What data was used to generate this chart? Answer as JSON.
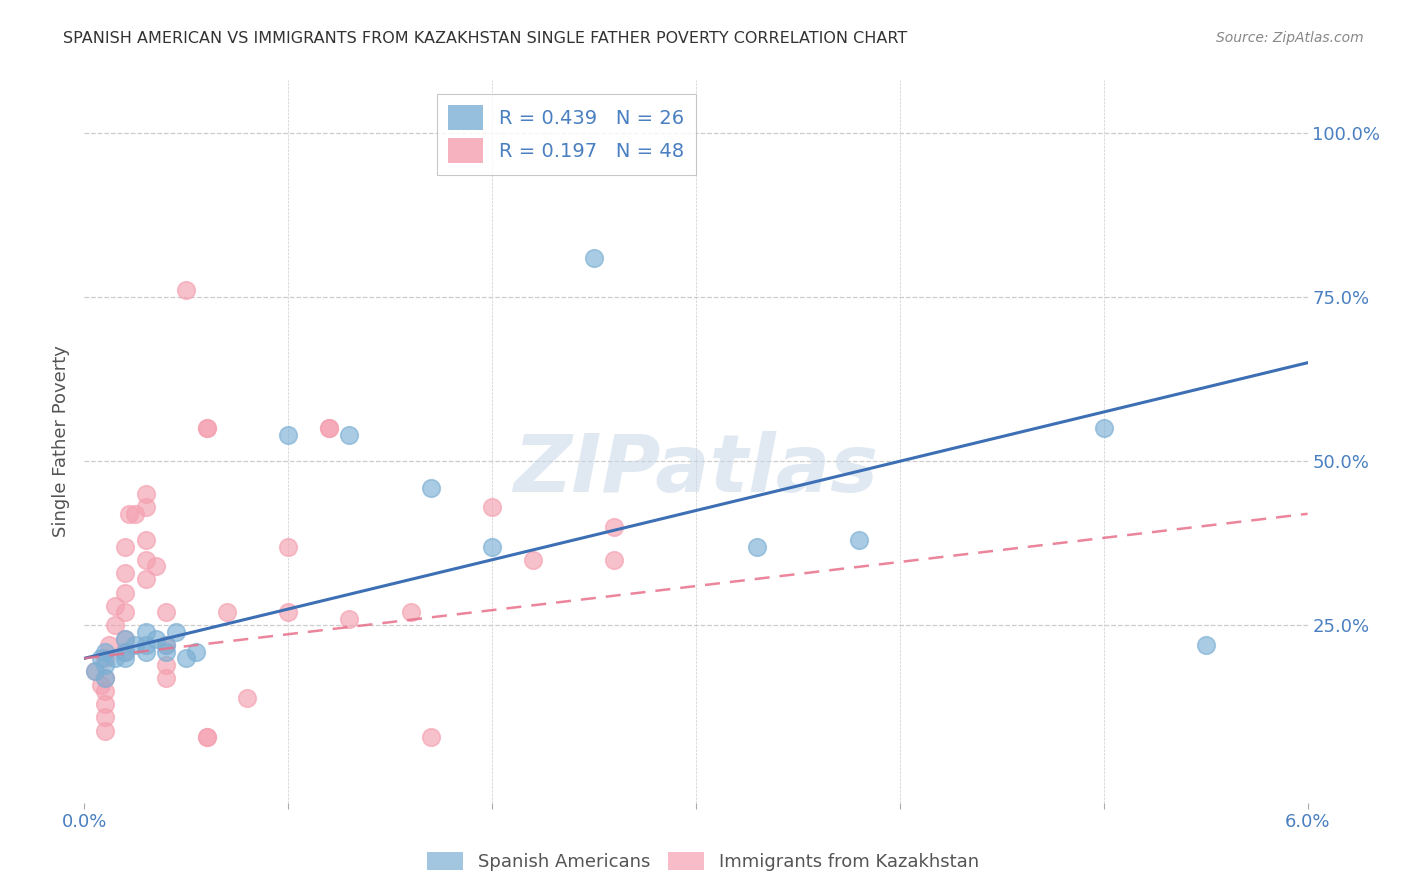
{
  "title": "SPANISH AMERICAN VS IMMIGRANTS FROM KAZAKHSTAN SINGLE FATHER POVERTY CORRELATION CHART",
  "source": "Source: ZipAtlas.com",
  "ylabel": "Single Father Poverty",
  "right_yticks": [
    "100.0%",
    "75.0%",
    "50.0%",
    "25.0%"
  ],
  "right_ytick_vals": [
    1.0,
    0.75,
    0.5,
    0.25
  ],
  "xlim": [
    0.0,
    0.06
  ],
  "ylim": [
    -0.02,
    1.08
  ],
  "series1_color": "#7BAFD4",
  "series2_color": "#F4A0B0",
  "series1_label": "Spanish Americans",
  "series2_label": "Immigrants from Kazakhstan",
  "blue_line": [
    0.0,
    0.2,
    0.06,
    0.65
  ],
  "pink_line": [
    0.0,
    0.2,
    0.06,
    0.42
  ],
  "blue_points": [
    [
      0.0005,
      0.18
    ],
    [
      0.0008,
      0.2
    ],
    [
      0.001,
      0.19
    ],
    [
      0.001,
      0.21
    ],
    [
      0.001,
      0.17
    ],
    [
      0.0015,
      0.2
    ],
    [
      0.002,
      0.21
    ],
    [
      0.002,
      0.23
    ],
    [
      0.002,
      0.2
    ],
    [
      0.0025,
      0.22
    ],
    [
      0.003,
      0.24
    ],
    [
      0.003,
      0.22
    ],
    [
      0.003,
      0.21
    ],
    [
      0.0035,
      0.23
    ],
    [
      0.004,
      0.22
    ],
    [
      0.004,
      0.21
    ],
    [
      0.0045,
      0.24
    ],
    [
      0.005,
      0.2
    ],
    [
      0.0055,
      0.21
    ],
    [
      0.01,
      0.54
    ],
    [
      0.013,
      0.54
    ],
    [
      0.017,
      0.46
    ],
    [
      0.02,
      0.37
    ],
    [
      0.025,
      0.81
    ],
    [
      0.033,
      0.37
    ],
    [
      0.038,
      0.38
    ],
    [
      0.05,
      0.55
    ],
    [
      0.055,
      0.22
    ]
  ],
  "pink_points": [
    [
      0.0005,
      0.18
    ],
    [
      0.0008,
      0.16
    ],
    [
      0.001,
      0.2
    ],
    [
      0.001,
      0.17
    ],
    [
      0.001,
      0.15
    ],
    [
      0.001,
      0.13
    ],
    [
      0.001,
      0.11
    ],
    [
      0.001,
      0.09
    ],
    [
      0.0012,
      0.22
    ],
    [
      0.0015,
      0.25
    ],
    [
      0.0015,
      0.28
    ],
    [
      0.002,
      0.23
    ],
    [
      0.002,
      0.21
    ],
    [
      0.002,
      0.27
    ],
    [
      0.002,
      0.3
    ],
    [
      0.002,
      0.33
    ],
    [
      0.002,
      0.37
    ],
    [
      0.0022,
      0.42
    ],
    [
      0.0025,
      0.42
    ],
    [
      0.003,
      0.32
    ],
    [
      0.003,
      0.35
    ],
    [
      0.003,
      0.38
    ],
    [
      0.003,
      0.43
    ],
    [
      0.003,
      0.45
    ],
    [
      0.0035,
      0.34
    ],
    [
      0.004,
      0.22
    ],
    [
      0.004,
      0.19
    ],
    [
      0.004,
      0.27
    ],
    [
      0.004,
      0.17
    ],
    [
      0.005,
      0.76
    ],
    [
      0.006,
      0.08
    ],
    [
      0.006,
      0.08
    ],
    [
      0.006,
      0.55
    ],
    [
      0.006,
      0.55
    ],
    [
      0.007,
      0.27
    ],
    [
      0.008,
      0.14
    ],
    [
      0.01,
      0.37
    ],
    [
      0.01,
      0.27
    ],
    [
      0.012,
      0.55
    ],
    [
      0.012,
      0.55
    ],
    [
      0.013,
      0.26
    ],
    [
      0.016,
      0.27
    ],
    [
      0.017,
      0.08
    ],
    [
      0.02,
      0.43
    ],
    [
      0.022,
      0.35
    ],
    [
      0.026,
      0.35
    ],
    [
      0.026,
      0.4
    ]
  ],
  "watermark_text": "ZIPatlas",
  "watermark_color": "#C8D8E8",
  "watermark_alpha": 0.55,
  "background_color": "#FFFFFF",
  "grid_color": "#CCCCCC",
  "tick_label_color": "#4A7FC1",
  "title_color": "#333333",
  "legend_label_color": "#4A7FC1"
}
